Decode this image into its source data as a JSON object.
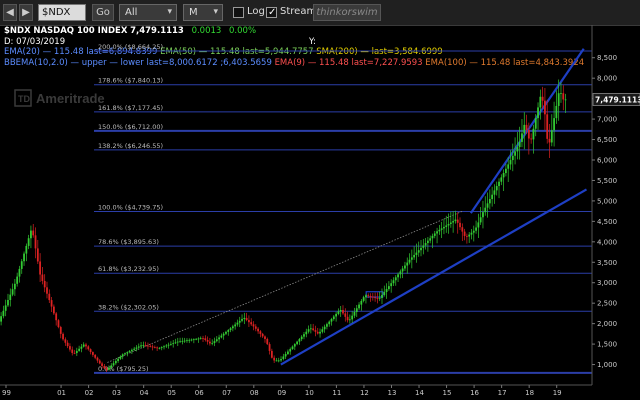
{
  "toolbar": {
    "back_label": "◀",
    "forward_label": "▶",
    "symbol_value": "$NDX",
    "go_label": "Go",
    "range_value": "All",
    "interval_value": "M",
    "log_label": "Log",
    "stream_label": "Stream",
    "think_label": "thinkorswim",
    "dropdown_glyph": "▾"
  },
  "header": {
    "symbol": "$NDX",
    "name": "NASDAQ 100 INDEX",
    "last": "7,479.1113",
    "change": "0.0013",
    "change_pct": "0.00%",
    "date_label": "D: 07/03/2019",
    "y_label": "Y:",
    "row1": [
      {
        "text": "EMA(20) — 115.48 last=6,894.8399",
        "color": "#5b8cff"
      },
      {
        "text": "EMA(50) — 115.48 last=5,944.7757",
        "color": "#7bd05a"
      },
      {
        "text": "SMA(200) — last=3,584.6999",
        "color": "#e6d200"
      }
    ],
    "row2": [
      {
        "text": "BBEMA(10,2.0) — upper — lower last=8,000.6172 ;6,403.5659",
        "color": "#5b8cff"
      },
      {
        "text": "EMA(9) — 115.48 last=7,227.9593",
        "color": "#ff5050"
      },
      {
        "text": "EMA(100) — 115.48 last=4,843.3924",
        "color": "#e07a2e"
      }
    ]
  },
  "watermark": "Ameritrade",
  "watermark_logo": "TD",
  "colors": {
    "background": "#000000",
    "bull": "#33cc33",
    "bear": "#dd2222",
    "fib": "#2b3ea8",
    "trend": "#1e3fc4",
    "price_tag": "#1a1a1a"
  },
  "chart_data": {
    "type": "candlestick",
    "ylim": [
      500,
      9300
    ],
    "y_ticks": [
      1000,
      1500,
      2000,
      2500,
      3000,
      3500,
      4000,
      4500,
      5000,
      5500,
      6000,
      6500,
      7000,
      7500,
      8000,
      8500
    ],
    "y_tick_labels": [
      "1,000",
      "1,500",
      "2,000",
      "2,500",
      "3,000",
      "3,500",
      "4,000",
      "4,500",
      "5,000",
      "5,500",
      "6,000",
      "6,500",
      "7,000",
      "7,500",
      "8,000",
      "8,500"
    ],
    "x_ticks": [
      1999,
      2001,
      2002,
      2003,
      2004,
      2005,
      2006,
      2007,
      2008,
      2009,
      2010,
      2011,
      2012,
      2013,
      2014,
      2015,
      2016,
      2017,
      2018,
      2019
    ],
    "x_tick_labels": [
      "99",
      "01",
      "02",
      "03",
      "04",
      "05",
      "06",
      "07",
      "08",
      "09",
      "10",
      "11",
      "12",
      "13",
      "14",
      "15",
      "16",
      "17",
      "18",
      "19"
    ],
    "xlim": [
      1999.0,
      2020.5
    ],
    "current_price": 7479.1113,
    "current_price_label": "7,479.1113",
    "fib_levels": [
      {
        "label": "200.0%",
        "price_label": "($8,664.25)",
        "value": 8664.25
      },
      {
        "label": "178.6%",
        "price_label": "($7,840.13)",
        "value": 7840.13
      },
      {
        "label": "161.8%",
        "price_label": "($7,177.45)",
        "value": 7177.45
      },
      {
        "label": "150.0%",
        "price_label": "($6,712.00)",
        "value": 6712.0
      },
      {
        "label": "138.2%",
        "price_label": "($6,246.55)",
        "value": 6246.55
      },
      {
        "label": "100.0%",
        "price_label": "($4,739.75)",
        "value": 4739.75
      },
      {
        "label": "78.6%",
        "price_label": "($3,895.63)",
        "value": 3895.63
      },
      {
        "label": "61.8%",
        "price_label": "($3,232.95)",
        "value": 3232.95
      },
      {
        "label": "38.2%",
        "price_label": "($2,302.05)",
        "value": 2302.05
      },
      {
        "label": "0.0%",
        "price_label": "($795.25)",
        "value": 795.25
      }
    ],
    "trendlines": [
      {
        "style": "solid",
        "x": [
          2009.2,
          2020.3
        ],
        "y": [
          1000,
          5280
        ]
      },
      {
        "style": "solid",
        "x": [
          2016.1,
          2020.2
        ],
        "y": [
          4700,
          8720
        ]
      },
      {
        "style": "dotted",
        "x": [
          2002.9,
          2015.8
        ],
        "y": [
          1050,
          4750
        ]
      }
    ],
    "box_annotation": {
      "x": [
        2012.3,
        2012.9
      ],
      "y": [
        2650,
        2780
      ]
    },
    "anchors": [
      {
        "x": 1999.0,
        "y": 2050
      },
      {
        "x": 1999.6,
        "y": 3000
      },
      {
        "x": 2000.2,
        "y": 4350
      },
      {
        "x": 2000.5,
        "y": 3200
      },
      {
        "x": 2000.9,
        "y": 2450
      },
      {
        "x": 2001.3,
        "y": 1650
      },
      {
        "x": 2001.7,
        "y": 1250
      },
      {
        "x": 2002.1,
        "y": 1500
      },
      {
        "x": 2002.7,
        "y": 1000
      },
      {
        "x": 2002.9,
        "y": 860
      },
      {
        "x": 2003.5,
        "y": 1250
      },
      {
        "x": 2004.2,
        "y": 1480
      },
      {
        "x": 2004.8,
        "y": 1400
      },
      {
        "x": 2005.5,
        "y": 1560
      },
      {
        "x": 2006.4,
        "y": 1650
      },
      {
        "x": 2006.7,
        "y": 1500
      },
      {
        "x": 2007.9,
        "y": 2150
      },
      {
        "x": 2008.3,
        "y": 1900
      },
      {
        "x": 2008.7,
        "y": 1600
      },
      {
        "x": 2008.95,
        "y": 1100
      },
      {
        "x": 2009.2,
        "y": 1100
      },
      {
        "x": 2010.3,
        "y": 1900
      },
      {
        "x": 2010.6,
        "y": 1750
      },
      {
        "x": 2011.4,
        "y": 2350
      },
      {
        "x": 2011.7,
        "y": 2050
      },
      {
        "x": 2012.3,
        "y": 2700
      },
      {
        "x": 2012.8,
        "y": 2600
      },
      {
        "x": 2013.9,
        "y": 3550
      },
      {
        "x": 2014.9,
        "y": 4250
      },
      {
        "x": 2015.6,
        "y": 4550
      },
      {
        "x": 2015.95,
        "y": 4100
      },
      {
        "x": 2016.3,
        "y": 4300
      },
      {
        "x": 2016.6,
        "y": 4750
      },
      {
        "x": 2017.9,
        "y": 6400
      },
      {
        "x": 2018.1,
        "y": 6900
      },
      {
        "x": 2018.3,
        "y": 6400
      },
      {
        "x": 2018.7,
        "y": 7650
      },
      {
        "x": 2018.85,
        "y": 7050
      },
      {
        "x": 2018.95,
        "y": 6250
      },
      {
        "x": 2019.3,
        "y": 7500
      },
      {
        "x": 2019.4,
        "y": 7900
      },
      {
        "x": 2019.45,
        "y": 7100
      },
      {
        "x": 2019.5,
        "y": 7480
      }
    ]
  }
}
